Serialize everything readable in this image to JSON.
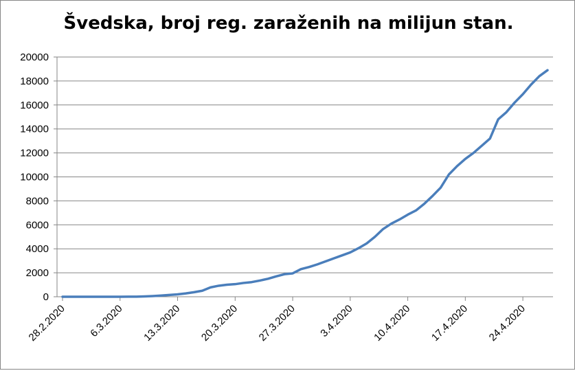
{
  "chart_data": {
    "type": "line",
    "title": "Švedska, broj reg. zaraženih na milijun stan.",
    "categories": [
      "28.2.2020",
      null,
      null,
      null,
      null,
      null,
      null,
      "6.3.2020",
      null,
      null,
      null,
      null,
      null,
      null,
      "13.3.2020",
      null,
      null,
      null,
      null,
      null,
      null,
      "20.3.2020",
      null,
      null,
      null,
      null,
      null,
      null,
      "27.3.2020",
      null,
      null,
      null,
      null,
      null,
      null,
      "3.4.2020",
      null,
      null,
      null,
      null,
      null,
      null,
      "10.4.2020",
      null,
      null,
      null,
      null,
      null,
      null,
      "17.4.2020",
      null,
      null,
      null,
      null,
      null,
      null,
      "24.4.2020",
      null,
      null,
      null
    ],
    "series": [
      {
        "name": "Švedska",
        "color": "#4a7ebb",
        "values": [
          0,
          1,
          1,
          1,
          1,
          2,
          2,
          3,
          5,
          10,
          30,
          60,
          100,
          150,
          200,
          280,
          380,
          500,
          780,
          920,
          1000,
          1050,
          1150,
          1220,
          1350,
          1500,
          1700,
          1880,
          1950,
          2300,
          2480,
          2700,
          2950,
          3200,
          3450,
          3700,
          4050,
          4450,
          5000,
          5650,
          6100,
          6450,
          6850,
          7200,
          7750,
          8400,
          9100,
          10200,
          10900,
          11500,
          12000,
          12600,
          13200,
          14800,
          15400,
          16200,
          16900,
          17700,
          18400,
          18900
        ]
      }
    ],
    "ylim": [
      0,
      20000
    ],
    "yticks": [
      0,
      2000,
      4000,
      6000,
      8000,
      10000,
      12000,
      14000,
      16000,
      18000,
      20000
    ],
    "grid": true
  }
}
